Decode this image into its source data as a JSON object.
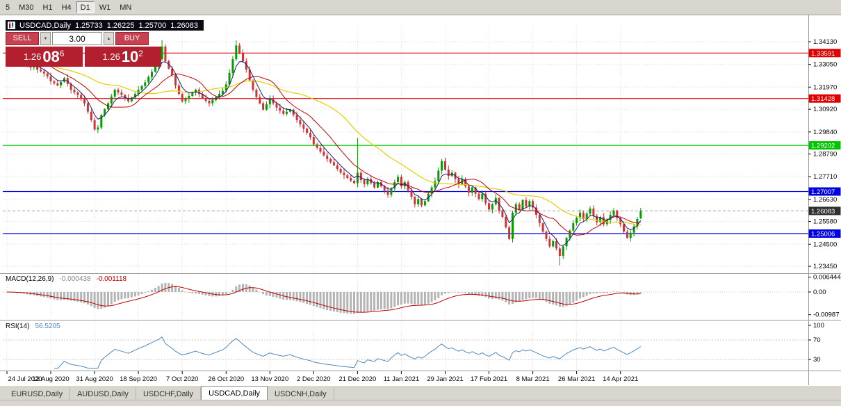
{
  "toolbar": {
    "timeframes": [
      {
        "label": "5",
        "active": false
      },
      {
        "label": "M30",
        "active": false
      },
      {
        "label": "H1",
        "active": false
      },
      {
        "label": "H4",
        "active": false
      },
      {
        "label": "D1",
        "active": true
      },
      {
        "label": "W1",
        "active": false
      },
      {
        "label": "MN",
        "active": false
      }
    ]
  },
  "chart": {
    "title": {
      "symbol": "USDCAD,Daily",
      "open": "1.25733",
      "high": "1.26225",
      "low": "1.25700",
      "close": "1.26083"
    },
    "trade_panel": {
      "sell_label": "SELL",
      "buy_label": "BUY",
      "volume": "3.00",
      "sell_price": {
        "big": "1.26",
        "mid": "08",
        "sup": "6"
      },
      "buy_price": {
        "big": "1.26",
        "mid": "10",
        "sup": "2"
      }
    }
  },
  "indicators": {
    "macd": {
      "label": "MACD(12,26,9)",
      "value_main": "-0.000438",
      "value_signal": "-0.001118",
      "axis_max": "0.006444",
      "axis_zero": "0.00",
      "axis_min": "-0.00987"
    },
    "rsi": {
      "label": "RSI(14)",
      "value": "56.5205",
      "axis_labels": [
        "100",
        "70",
        "30"
      ]
    }
  },
  "tabs": [
    {
      "label": "EURUSD,Daily",
      "active": false
    },
    {
      "label": "AUDUSD,Daily",
      "active": false
    },
    {
      "label": "USDCHF,Daily",
      "active": false
    },
    {
      "label": "USDCAD,Daily",
      "active": true
    },
    {
      "label": "USDCNH,Daily",
      "active": false
    }
  ],
  "colors": {
    "candle_up": "#089b00",
    "candle_down": "#d03333",
    "ma_fast": "#1c1c78",
    "ma_medium": "#c00000",
    "ma_slow": "#e3cf00",
    "hline_red": "#e00000",
    "hline_green": "#00c400",
    "hline_blue": "#0000e0",
    "current_price_bg": "#303030",
    "macd_histogram": "#b4b4b4",
    "macd_signal": "#c00000",
    "rsi_line": "#4f87c0",
    "grid": "#e0e0e0",
    "separator": "#9a9a9a",
    "trade_button_red": "#c84150",
    "trade_price_red": "#b2202f"
  },
  "chart_data": {
    "type": "candlestick",
    "symbol": "USDCAD",
    "period": "Daily",
    "y_axis_labels": [
      "1.34130",
      "1.33050",
      "1.31970",
      "1.30920",
      "1.29840",
      "1.28790",
      "1.27710",
      "1.26630",
      "1.25580",
      "1.24500",
      "1.23450"
    ],
    "x_axis_labels": [
      "24 Jul 2020",
      "12 Aug 2020",
      "31 Aug 2020",
      "18 Sep 2020",
      "7 Oct 2020",
      "26 Oct 2020",
      "13 Nov 2020",
      "2 Dec 2020",
      "21 Dec 2020",
      "11 Jan 2021",
      "29 Jan 2021",
      "17 Feb 2021",
      "8 Mar 2021",
      "26 Mar 2021",
      "14 Apr 2021"
    ],
    "y_axis_range": {
      "top": 1.3413,
      "bottom": 1.2345
    },
    "horizontal_lines": [
      {
        "price": 1.33591,
        "label": "1.33591",
        "color": "red"
      },
      {
        "price": 1.31428,
        "label": "1.31428",
        "color": "red"
      },
      {
        "price": 1.29202,
        "label": "1.29202",
        "color": "green"
      },
      {
        "price": 1.27007,
        "label": "1.27007",
        "color": "blue"
      },
      {
        "price": 1.25006,
        "label": "1.25006",
        "color": "blue"
      }
    ],
    "current_price": {
      "price": 1.26083,
      "label": "1.26083"
    },
    "last_candle_ohlc": {
      "open": 1.25733,
      "high": 1.26225,
      "low": 1.257,
      "close": 1.26083
    },
    "first_open": 1.337,
    "closes": [
      1.336,
      1.3348,
      1.3336,
      1.3324,
      1.3338,
      1.332,
      1.3305,
      1.329,
      1.3296,
      1.328,
      1.3272,
      1.3262,
      1.3248,
      1.3225,
      1.3215,
      1.3205,
      1.3222,
      1.324,
      1.3212,
      1.3185,
      1.3172,
      1.316,
      1.314,
      1.312,
      1.308,
      1.304,
      1.2995,
      1.3005,
      1.3065,
      1.3092,
      1.312,
      1.3152,
      1.3185,
      1.3172,
      1.316,
      1.3145,
      1.313,
      1.3147,
      1.3165,
      1.3185,
      1.3202,
      1.322,
      1.3245,
      1.327,
      1.33,
      1.333,
      1.339,
      1.332,
      1.3285,
      1.3255,
      1.3205,
      1.3165,
      1.313,
      1.3142,
      1.3155,
      1.317,
      1.3185,
      1.3165,
      1.3145,
      1.3132,
      1.312,
      1.3135,
      1.315,
      1.3165,
      1.318,
      1.321,
      1.3265,
      1.333,
      1.3395,
      1.336,
      1.332,
      1.328,
      1.323,
      1.3185,
      1.315,
      1.312,
      1.309,
      1.3115,
      1.314,
      1.312,
      1.31,
      1.3085,
      1.307,
      1.308,
      1.309,
      1.3065,
      1.304,
      1.302,
      1.3,
      1.298,
      1.296,
      1.2925,
      1.2908,
      1.289,
      1.2872,
      1.2855,
      1.284,
      1.2825,
      1.2808,
      1.279,
      1.2778,
      1.2765,
      1.2752,
      1.274,
      1.279,
      1.2755,
      1.2735,
      1.276,
      1.274,
      1.272,
      1.2745,
      1.2725,
      1.2705,
      1.2685,
      1.2715,
      1.2745,
      1.277,
      1.2725,
      1.2745,
      1.2705,
      1.2675,
      1.264,
      1.2665,
      1.2635,
      1.2655,
      1.269,
      1.272,
      1.275,
      1.28,
      1.2845,
      1.2805,
      1.2775,
      1.279,
      1.276,
      1.2735,
      1.276,
      1.2725,
      1.2695,
      1.272,
      1.269,
      1.2665,
      1.269,
      1.2645,
      1.2615,
      1.264,
      1.267,
      1.261,
      1.258,
      1.253,
      1.2475,
      1.26,
      1.264,
      1.2615,
      1.266,
      1.263,
      1.2655,
      1.2625,
      1.259,
      1.255,
      1.251,
      1.2475,
      1.244,
      1.2465,
      1.243,
      1.2395,
      1.244,
      1.248,
      1.2515,
      1.255,
      1.2575,
      1.26,
      1.257,
      1.2595,
      1.262,
      1.2585,
      1.2555,
      1.258,
      1.2545,
      1.2565,
      1.259,
      1.261,
      1.2575,
      1.2545,
      1.251,
      1.248,
      1.2505,
      1.2535,
      1.257,
      1.26083
    ],
    "special_candles": {
      "46": {
        "h": 1.342
      },
      "68": {
        "h": 1.342
      },
      "104": {
        "h": 1.2955
      },
      "149": {
        "l": 1.247
      },
      "164": {
        "l": 1.235
      },
      "188": {
        "o": 1.25733,
        "h": 1.26225,
        "l": 1.257
      }
    },
    "moving_averages": [
      {
        "name": "fast",
        "type": "ema",
        "period": 5
      },
      {
        "name": "medium",
        "type": "sma",
        "period": 13
      },
      {
        "name": "slow",
        "type": "sma",
        "period": 34
      }
    ],
    "macd_params": [
      12,
      26,
      9
    ],
    "rsi_period": 14,
    "rsi_levels": [
      70,
      30
    ]
  }
}
